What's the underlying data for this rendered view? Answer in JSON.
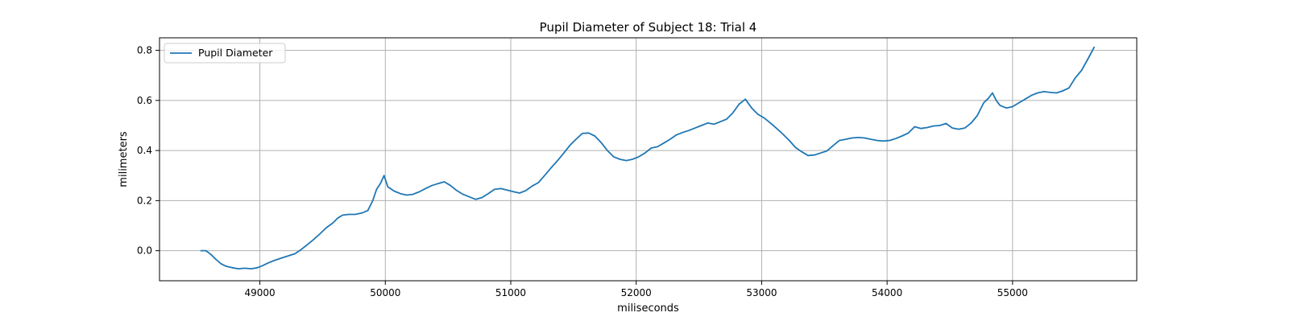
{
  "chart_data": {
    "type": "line",
    "title": "Pupil Diameter of Subject 18: Trial 4",
    "xlabel": "miliseconds",
    "ylabel": "milimeters",
    "xlim": [
      48200,
      55990
    ],
    "ylim": [
      -0.12,
      0.85
    ],
    "xticks": [
      49000,
      50000,
      51000,
      52000,
      53000,
      54000,
      55000
    ],
    "yticks": [
      0.0,
      0.2,
      0.4,
      0.6,
      0.8
    ],
    "grid": true,
    "legend_position": "top-left",
    "series": [
      {
        "name": "Pupil Diameter",
        "color": "#1f77b4",
        "points": [
          [
            48530,
            0.0
          ],
          [
            48570,
            0.0
          ],
          [
            48610,
            -0.015
          ],
          [
            48650,
            -0.035
          ],
          [
            48690,
            -0.052
          ],
          [
            48730,
            -0.062
          ],
          [
            48780,
            -0.068
          ],
          [
            48830,
            -0.072
          ],
          [
            48880,
            -0.07
          ],
          [
            48930,
            -0.072
          ],
          [
            48980,
            -0.068
          ],
          [
            49020,
            -0.06
          ],
          [
            49070,
            -0.048
          ],
          [
            49120,
            -0.038
          ],
          [
            49180,
            -0.028
          ],
          [
            49230,
            -0.02
          ],
          [
            49280,
            -0.012
          ],
          [
            49330,
            0.005
          ],
          [
            49380,
            0.025
          ],
          [
            49430,
            0.045
          ],
          [
            49480,
            0.068
          ],
          [
            49530,
            0.092
          ],
          [
            49580,
            0.11
          ],
          [
            49620,
            0.13
          ],
          [
            49660,
            0.142
          ],
          [
            49710,
            0.145
          ],
          [
            49760,
            0.145
          ],
          [
            49810,
            0.15
          ],
          [
            49860,
            0.16
          ],
          [
            49900,
            0.2
          ],
          [
            49930,
            0.245
          ],
          [
            49960,
            0.268
          ],
          [
            49990,
            0.3
          ],
          [
            50020,
            0.255
          ],
          [
            50070,
            0.238
          ],
          [
            50120,
            0.228
          ],
          [
            50170,
            0.222
          ],
          [
            50220,
            0.225
          ],
          [
            50270,
            0.235
          ],
          [
            50320,
            0.248
          ],
          [
            50370,
            0.26
          ],
          [
            50420,
            0.268
          ],
          [
            50470,
            0.275
          ],
          [
            50520,
            0.26
          ],
          [
            50570,
            0.24
          ],
          [
            50620,
            0.225
          ],
          [
            50670,
            0.215
          ],
          [
            50720,
            0.205
          ],
          [
            50770,
            0.212
          ],
          [
            50820,
            0.228
          ],
          [
            50870,
            0.245
          ],
          [
            50920,
            0.248
          ],
          [
            50970,
            0.242
          ],
          [
            51020,
            0.236
          ],
          [
            51070,
            0.23
          ],
          [
            51120,
            0.24
          ],
          [
            51170,
            0.258
          ],
          [
            51220,
            0.272
          ],
          [
            51270,
            0.3
          ],
          [
            51320,
            0.33
          ],
          [
            51370,
            0.358
          ],
          [
            51420,
            0.388
          ],
          [
            51470,
            0.42
          ],
          [
            51520,
            0.445
          ],
          [
            51570,
            0.468
          ],
          [
            51620,
            0.47
          ],
          [
            51670,
            0.458
          ],
          [
            51720,
            0.432
          ],
          [
            51770,
            0.4
          ],
          [
            51820,
            0.375
          ],
          [
            51870,
            0.365
          ],
          [
            51920,
            0.36
          ],
          [
            51970,
            0.365
          ],
          [
            52020,
            0.375
          ],
          [
            52070,
            0.39
          ],
          [
            52120,
            0.41
          ],
          [
            52170,
            0.415
          ],
          [
            52220,
            0.43
          ],
          [
            52270,
            0.445
          ],
          [
            52320,
            0.462
          ],
          [
            52370,
            0.472
          ],
          [
            52420,
            0.48
          ],
          [
            52470,
            0.49
          ],
          [
            52520,
            0.5
          ],
          [
            52570,
            0.51
          ],
          [
            52620,
            0.505
          ],
          [
            52670,
            0.515
          ],
          [
            52720,
            0.525
          ],
          [
            52770,
            0.55
          ],
          [
            52820,
            0.585
          ],
          [
            52870,
            0.605
          ],
          [
            52920,
            0.57
          ],
          [
            52970,
            0.545
          ],
          [
            53020,
            0.53
          ],
          [
            53070,
            0.51
          ],
          [
            53120,
            0.488
          ],
          [
            53170,
            0.465
          ],
          [
            53220,
            0.44
          ],
          [
            53270,
            0.412
          ],
          [
            53320,
            0.395
          ],
          [
            53370,
            0.38
          ],
          [
            53420,
            0.382
          ],
          [
            53470,
            0.39
          ],
          [
            53520,
            0.398
          ],
          [
            53570,
            0.42
          ],
          [
            53620,
            0.44
          ],
          [
            53670,
            0.445
          ],
          [
            53720,
            0.45
          ],
          [
            53770,
            0.452
          ],
          [
            53820,
            0.45
          ],
          [
            53870,
            0.445
          ],
          [
            53920,
            0.44
          ],
          [
            53970,
            0.438
          ],
          [
            54020,
            0.44
          ],
          [
            54070,
            0.448
          ],
          [
            54120,
            0.458
          ],
          [
            54170,
            0.47
          ],
          [
            54220,
            0.495
          ],
          [
            54270,
            0.488
          ],
          [
            54320,
            0.492
          ],
          [
            54370,
            0.498
          ],
          [
            54420,
            0.5
          ],
          [
            54470,
            0.508
          ],
          [
            54520,
            0.49
          ],
          [
            54570,
            0.485
          ],
          [
            54620,
            0.49
          ],
          [
            54670,
            0.51
          ],
          [
            54720,
            0.54
          ],
          [
            54770,
            0.59
          ],
          [
            54810,
            0.61
          ],
          [
            54840,
            0.63
          ],
          [
            54870,
            0.6
          ],
          [
            54900,
            0.58
          ],
          [
            54950,
            0.57
          ],
          [
            55000,
            0.575
          ],
          [
            55050,
            0.59
          ],
          [
            55100,
            0.605
          ],
          [
            55150,
            0.62
          ],
          [
            55200,
            0.63
          ],
          [
            55250,
            0.635
          ],
          [
            55300,
            0.632
          ],
          [
            55350,
            0.63
          ],
          [
            55400,
            0.638
          ],
          [
            55450,
            0.65
          ],
          [
            55500,
            0.69
          ],
          [
            55550,
            0.72
          ],
          [
            55600,
            0.765
          ],
          [
            55650,
            0.812
          ]
        ]
      }
    ]
  }
}
